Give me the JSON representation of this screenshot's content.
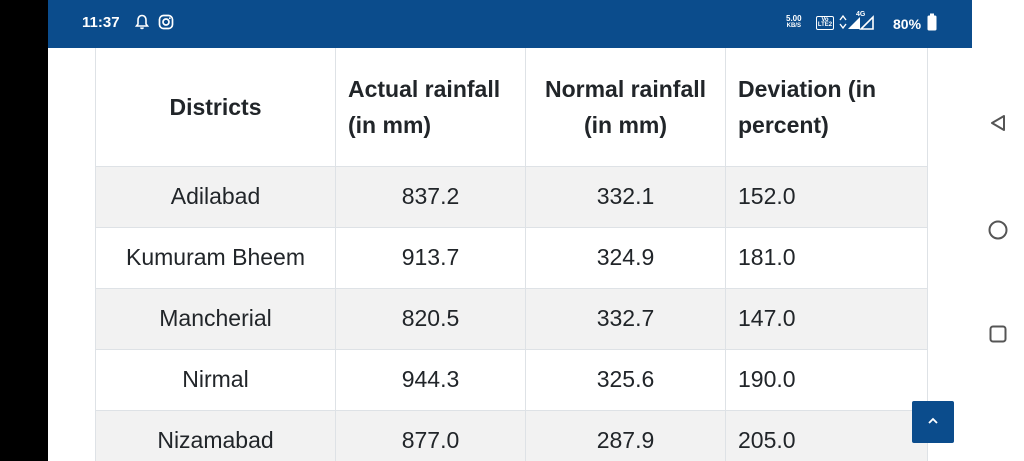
{
  "status_bar": {
    "time": "11:37",
    "net_speed_value": "5.00",
    "net_speed_unit": "KB/S",
    "volte_top": "Vo",
    "volte_bottom": "LTE2",
    "signal_label": "4G",
    "battery": "80%",
    "icons": [
      "notification-bell-icon",
      "instagram-icon",
      "volte-icon",
      "signal-icon",
      "battery-icon"
    ]
  },
  "table": {
    "headers": [
      "Districts",
      "Actual rainfall (in mm)",
      "Normal rainfall (in mm)",
      "Deviation (in percent)"
    ],
    "rows": [
      [
        "Adilabad",
        "837.2",
        "332.1",
        "152.0"
      ],
      [
        "Kumuram Bheem",
        "913.7",
        "324.9",
        "181.0"
      ],
      [
        "Mancherial",
        "820.5",
        "332.7",
        "147.0"
      ],
      [
        "Nirmal",
        "944.3",
        "325.6",
        "190.0"
      ],
      [
        "Nizamabad",
        "877.0",
        "287.9",
        "205.0"
      ]
    ]
  },
  "scroll_top": {
    "icon": "chevron-up-icon"
  },
  "nav_bar": {
    "icons": [
      "back-triangle-icon",
      "home-circle-icon",
      "recents-square-icon"
    ]
  },
  "colors": {
    "brand_blue": "#0b4c8c",
    "row_stripe": "#f2f2f2",
    "border": "#dee2e6",
    "text": "#212529",
    "nav_icon": "#555555"
  }
}
